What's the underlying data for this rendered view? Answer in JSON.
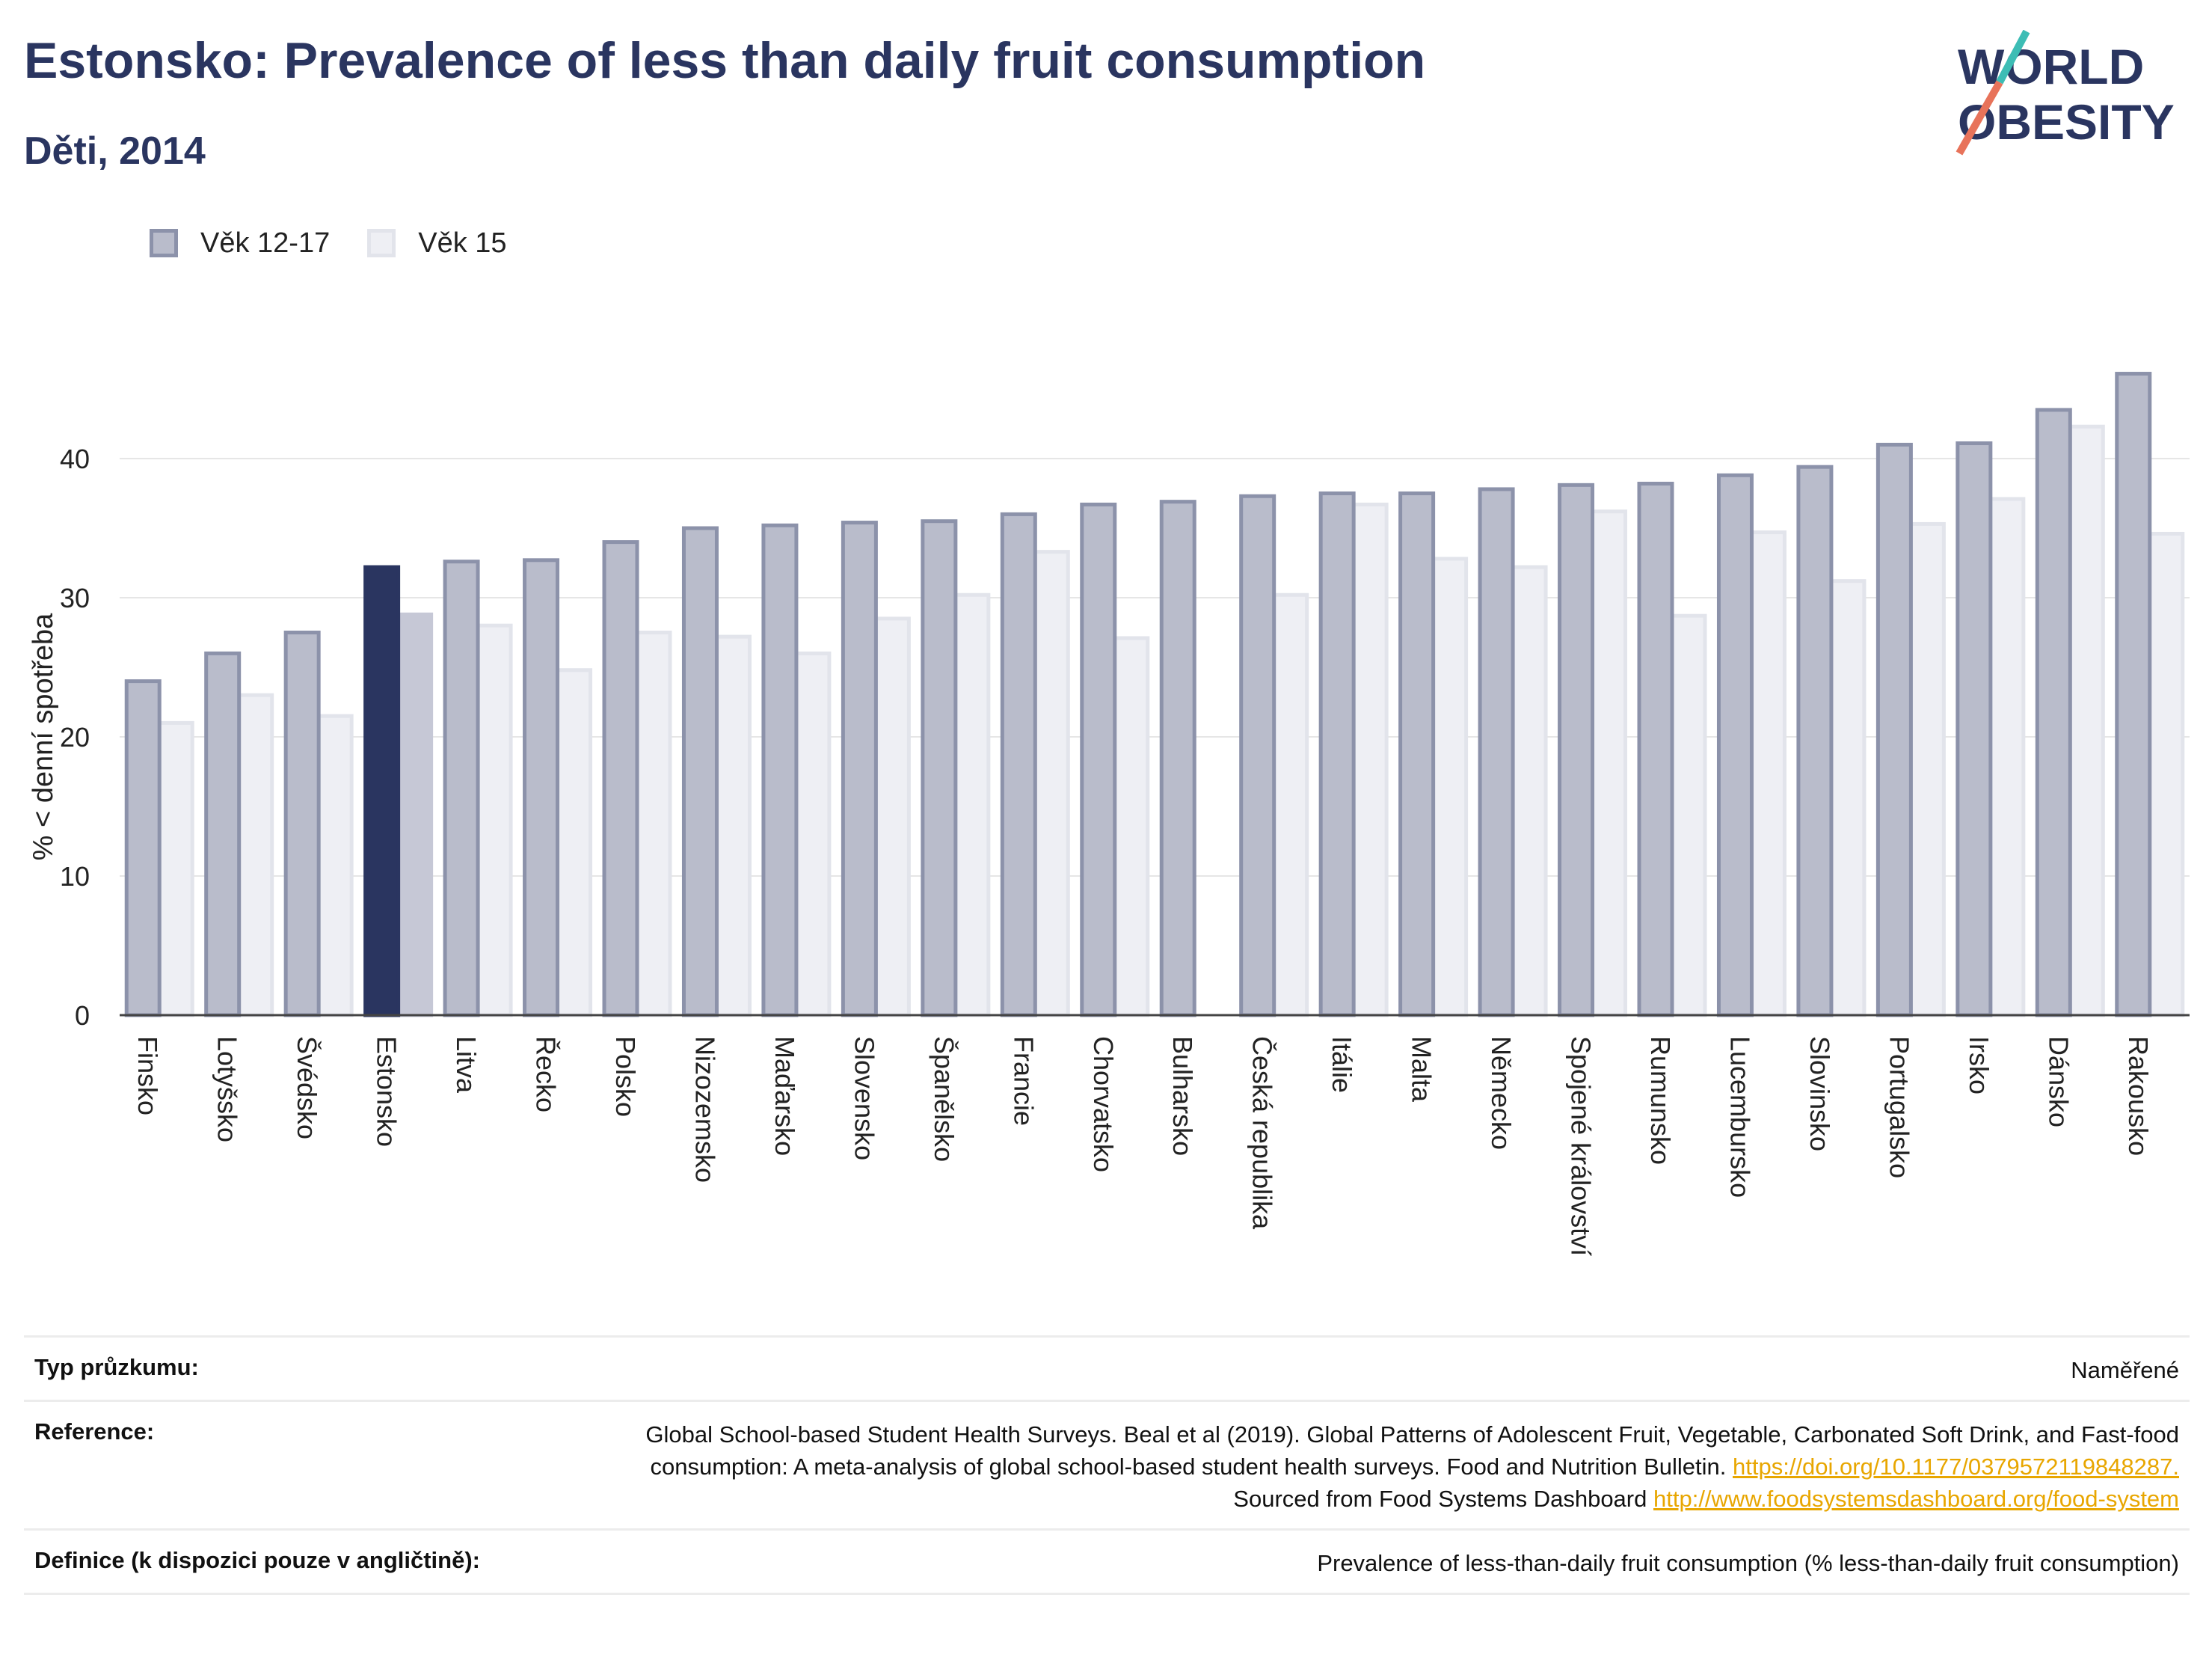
{
  "header": {
    "title": "Estonsko: Prevalence of less than daily fruit consumption",
    "subtitle": "Děti, 2014"
  },
  "logo": {
    "line1": "WORLD",
    "line2": "OBESITY"
  },
  "colors": {
    "series1_fill": "#b9bccb",
    "series1_stroke": "#8c92aa",
    "series2_fill": "#eeeff4",
    "series2_stroke": "#e2e4eb",
    "highlight1": "#2a3560",
    "highlight2": "#c6c8d6",
    "title": "#2a3560",
    "link": "#e8a600"
  },
  "chart_data": {
    "type": "bar",
    "ylabel": "% < denní spotřeba",
    "ylim": [
      0,
      48
    ],
    "yticks": [
      0,
      10,
      20,
      30,
      40
    ],
    "grid": true,
    "legend_position": "top-left",
    "highlight_category": "Estonsko",
    "categories": [
      "Finsko",
      "Lotyšsko",
      "Švédsko",
      "Estonsko",
      "Litva",
      "Řecko",
      "Polsko",
      "Nizozemsko",
      "Maďarsko",
      "Slovensko",
      "Španělsko",
      "Francie",
      "Chorvatsko",
      "Bulharsko",
      "Česká republika",
      "Itálie",
      "Malta",
      "Německo",
      "Spojené království",
      "Rumunsko",
      "Lucembursko",
      "Slovinsko",
      "Portugalsko",
      "Irsko",
      "Dánsko",
      "Rakousko"
    ],
    "series": [
      {
        "name": "Věk 12-17",
        "values": [
          24.0,
          26.0,
          27.5,
          32.2,
          32.6,
          32.7,
          34.0,
          35.0,
          35.2,
          35.4,
          35.5,
          36.0,
          36.7,
          36.9,
          37.3,
          37.5,
          37.5,
          37.8,
          38.1,
          38.2,
          38.8,
          39.4,
          41.0,
          41.1,
          43.5,
          46.1
        ]
      },
      {
        "name": "Věk 15",
        "values": [
          21.0,
          23.0,
          21.5,
          28.8,
          28.0,
          24.8,
          27.5,
          27.2,
          26.0,
          28.5,
          30.2,
          33.3,
          27.1,
          null,
          30.2,
          36.7,
          32.8,
          32.2,
          36.2,
          28.7,
          34.7,
          31.2,
          35.3,
          37.1,
          42.3,
          34.6
        ]
      }
    ]
  },
  "footer": {
    "survey_label": "Typ průzkumu:",
    "survey_value": "Naměřené",
    "reference_label": "Reference:",
    "reference_text": "Global School-based Student Health Surveys. Beal et al (2019). Global Patterns of Adolescent Fruit, Vegetable, Carbonated Soft Drink, and Fast-food consumption: A meta-analysis of global school-based student health surveys. Food and Nutrition Bulletin.",
    "reference_link1": "https://doi.org/10.1177/0379572119848287.",
    "reference_mid": "Sourced from Food Systems Dashboard",
    "reference_link2": "http://www.foodsystemsdashboard.org/food-system",
    "definition_label": "Definice (k dispozici pouze v angličtině):",
    "definition_value": "Prevalence of less-than-daily fruit consumption (% less-than-daily fruit consumption)"
  }
}
